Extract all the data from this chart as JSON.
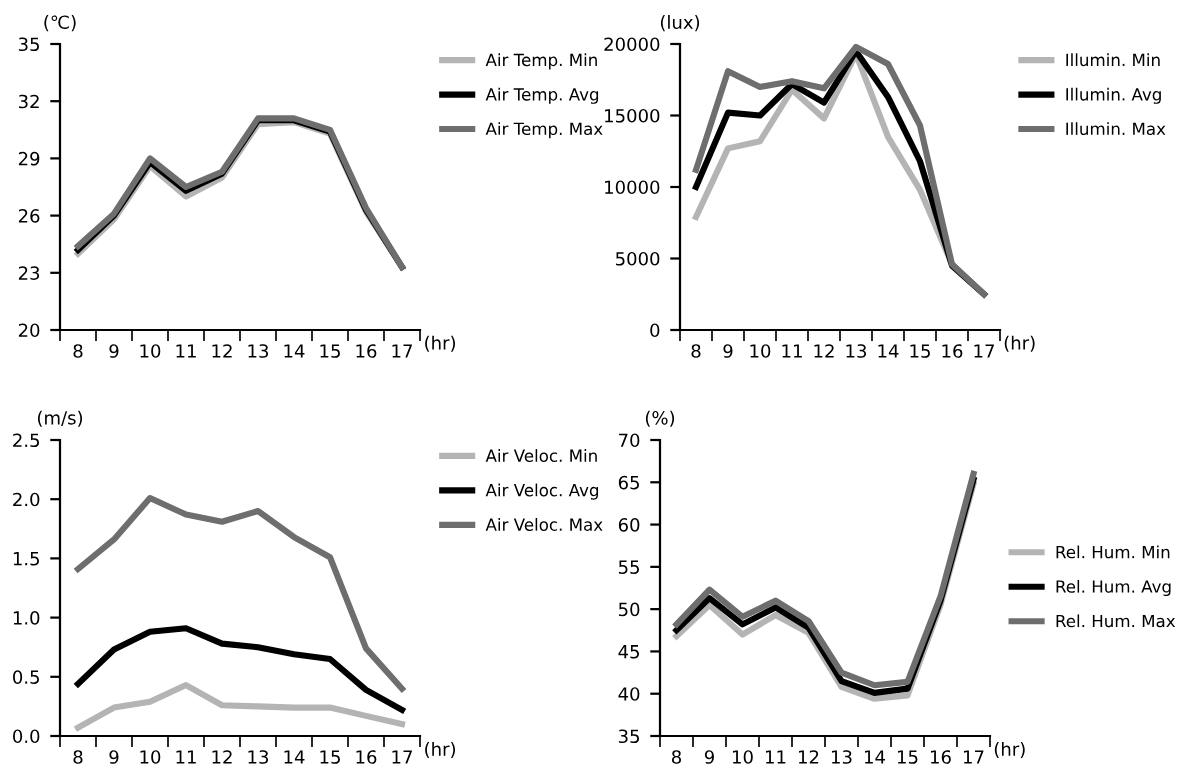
{
  "chart_data": [
    {
      "type": "line",
      "ylabel": "(℃)",
      "xlabel": "(hr)",
      "categories": [
        "8",
        "9",
        "10",
        "11",
        "12",
        "13",
        "14",
        "15",
        "16",
        "17"
      ],
      "ylim": [
        20,
        35
      ],
      "yticks": [
        20,
        23,
        26,
        29,
        32,
        35
      ],
      "legend": "top right",
      "grid": false,
      "series": [
        {
          "name": "Air Temp. Min",
          "color": "#b4b4b4",
          "values": [
            24.0,
            25.8,
            28.6,
            27.0,
            28.0,
            30.8,
            30.9,
            30.3,
            26.2,
            23.3
          ]
        },
        {
          "name": "Air Temp. Avg",
          "color": "#000000",
          "values": [
            24.2,
            26.0,
            28.8,
            27.3,
            28.2,
            31.0,
            31.0,
            30.4,
            26.3,
            23.3
          ]
        },
        {
          "name": "Air Temp. Max",
          "color": "#6e6e6e",
          "values": [
            24.4,
            26.1,
            29.0,
            27.5,
            28.3,
            31.1,
            31.1,
            30.5,
            26.4,
            23.3
          ]
        }
      ]
    },
    {
      "type": "line",
      "ylabel": "(lux)",
      "xlabel": "(hr)",
      "categories": [
        "8",
        "9",
        "10",
        "11",
        "12",
        "13",
        "14",
        "15",
        "16",
        "17"
      ],
      "ylim": [
        0,
        20000
      ],
      "yticks": [
        0,
        5000,
        10000,
        15000,
        20000
      ],
      "legend": "top right",
      "grid": false,
      "series": [
        {
          "name": "Illumin. Min",
          "color": "#b4b4b4",
          "values": [
            7900,
            12700,
            13200,
            16800,
            14800,
            19300,
            13500,
            9800,
            4600,
            2500
          ]
        },
        {
          "name": "Illumin. Avg",
          "color": "#000000",
          "values": [
            10000,
            15200,
            15000,
            17200,
            15900,
            19500,
            16300,
            11800,
            4500,
            2500
          ]
        },
        {
          "name": "Illumin. Max",
          "color": "#6e6e6e",
          "values": [
            11200,
            18100,
            17000,
            17400,
            16900,
            19800,
            18600,
            14300,
            4600,
            2500
          ]
        }
      ]
    },
    {
      "type": "line",
      "ylabel": "(m/s)",
      "xlabel": "(hr)",
      "categories": [
        "8",
        "9",
        "10",
        "11",
        "12",
        "13",
        "14",
        "15",
        "16",
        "17"
      ],
      "ylim": [
        0,
        2.5
      ],
      "yticks": [
        {
          "value": 0,
          "label": "0.0"
        },
        {
          "value": 0.5,
          "label": "0.5"
        },
        {
          "value": 1,
          "label": "1.0"
        },
        {
          "value": 1.5,
          "label": "1.5"
        },
        {
          "value": 2,
          "label": "2.0"
        },
        {
          "value": 2.5,
          "label": "2.5"
        }
      ],
      "legend": "top right",
      "grid": false,
      "series": [
        {
          "name": "Air Veloc. Min",
          "color": "#b4b4b4",
          "values": [
            0.07,
            0.24,
            0.29,
            0.43,
            0.26,
            0.25,
            0.24,
            0.24,
            0.17,
            0.1
          ]
        },
        {
          "name": "Air Veloc. Avg",
          "color": "#000000",
          "values": [
            0.44,
            0.73,
            0.88,
            0.91,
            0.78,
            0.75,
            0.69,
            0.65,
            0.39,
            0.22
          ]
        },
        {
          "name": "Air Veloc. Max",
          "color": "#6e6e6e",
          "values": [
            1.41,
            1.66,
            2.01,
            1.87,
            1.81,
            1.9,
            1.68,
            1.51,
            0.74,
            0.4
          ]
        }
      ]
    },
    {
      "type": "line",
      "ylabel": "(%)",
      "xlabel": "(hr)",
      "categories": [
        "8",
        "9",
        "10",
        "11",
        "12",
        "13",
        "14",
        "15",
        "16",
        "17"
      ],
      "ylim": [
        35,
        70
      ],
      "yticks": [
        35,
        40,
        45,
        50,
        55,
        60,
        65,
        70
      ],
      "legend": "right",
      "grid": false,
      "series": [
        {
          "name": "Rel. Hum. Min",
          "color": "#b4b4b4",
          "values": [
            46.8,
            50.5,
            47.0,
            49.3,
            47.2,
            40.8,
            39.4,
            39.8,
            50.5,
            64.8
          ]
        },
        {
          "name": "Rel. Hum. Avg",
          "color": "#000000",
          "values": [
            47.5,
            51.3,
            48.2,
            50.2,
            47.8,
            41.5,
            40.1,
            40.6,
            51.0,
            65.3
          ]
        },
        {
          "name": "Rel. Hum. Max",
          "color": "#6e6e6e",
          "values": [
            48.2,
            52.3,
            49.1,
            51.0,
            48.6,
            42.5,
            41.0,
            41.4,
            51.5,
            66.0
          ]
        }
      ]
    }
  ]
}
